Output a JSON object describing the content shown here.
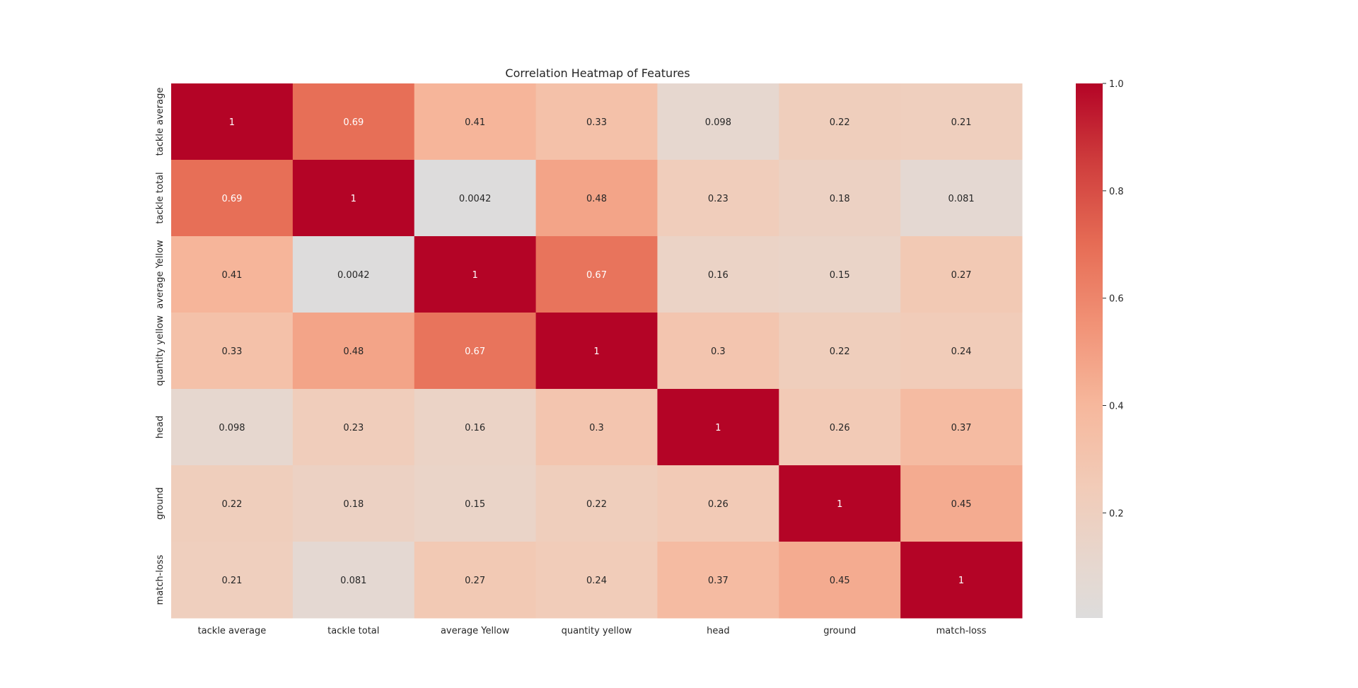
{
  "chart_data": {
    "type": "heatmap",
    "title": "Correlation Heatmap of Features",
    "xlabel": "",
    "ylabel": "",
    "labels": [
      "tackle average",
      "tackle total",
      "average Yellow",
      "quantity yellow",
      "head",
      "ground",
      "match-loss"
    ],
    "values": [
      [
        1,
        0.69,
        0.41,
        0.33,
        0.098,
        0.22,
        0.21
      ],
      [
        0.69,
        1,
        0.0042,
        0.48,
        0.23,
        0.18,
        0.081
      ],
      [
        0.41,
        0.0042,
        1,
        0.67,
        0.16,
        0.15,
        0.27
      ],
      [
        0.33,
        0.48,
        0.67,
        1,
        0.3,
        0.22,
        0.24
      ],
      [
        0.098,
        0.23,
        0.16,
        0.3,
        1,
        0.26,
        0.37
      ],
      [
        0.22,
        0.18,
        0.15,
        0.22,
        0.26,
        1,
        0.45
      ],
      [
        0.21,
        0.081,
        0.27,
        0.24,
        0.37,
        0.45,
        1
      ]
    ],
    "value_labels": [
      [
        "1",
        "0.69",
        "0.41",
        "0.33",
        "0.098",
        "0.22",
        "0.21"
      ],
      [
        "0.69",
        "1",
        "0.0042",
        "0.48",
        "0.23",
        "0.18",
        "0.081"
      ],
      [
        "0.41",
        "0.0042",
        "1",
        "0.67",
        "0.16",
        "0.15",
        "0.27"
      ],
      [
        "0.33",
        "0.48",
        "0.67",
        "1",
        "0.3",
        "0.22",
        "0.24"
      ],
      [
        "0.098",
        "0.23",
        "0.16",
        "0.3",
        "1",
        "0.26",
        "0.37"
      ],
      [
        "0.22",
        "0.18",
        "0.15",
        "0.22",
        "0.26",
        "1",
        "0.45"
      ],
      [
        "0.21",
        "0.081",
        "0.27",
        "0.24",
        "0.37",
        "0.45",
        "1"
      ]
    ],
    "colormap": "coolwarm",
    "vmin": 0.0042,
    "vmax": 1,
    "colorbar_ticks": [
      0.2,
      0.4,
      0.6,
      0.8,
      1.0
    ],
    "colorbar_tick_labels": [
      "0.2",
      "0.4",
      "0.6",
      "0.8",
      "1.0"
    ],
    "colors": {
      "low": "#dcdcdc",
      "high": "#b40426",
      "text_dark": "#262626",
      "text_light": "#ffffff"
    }
  }
}
